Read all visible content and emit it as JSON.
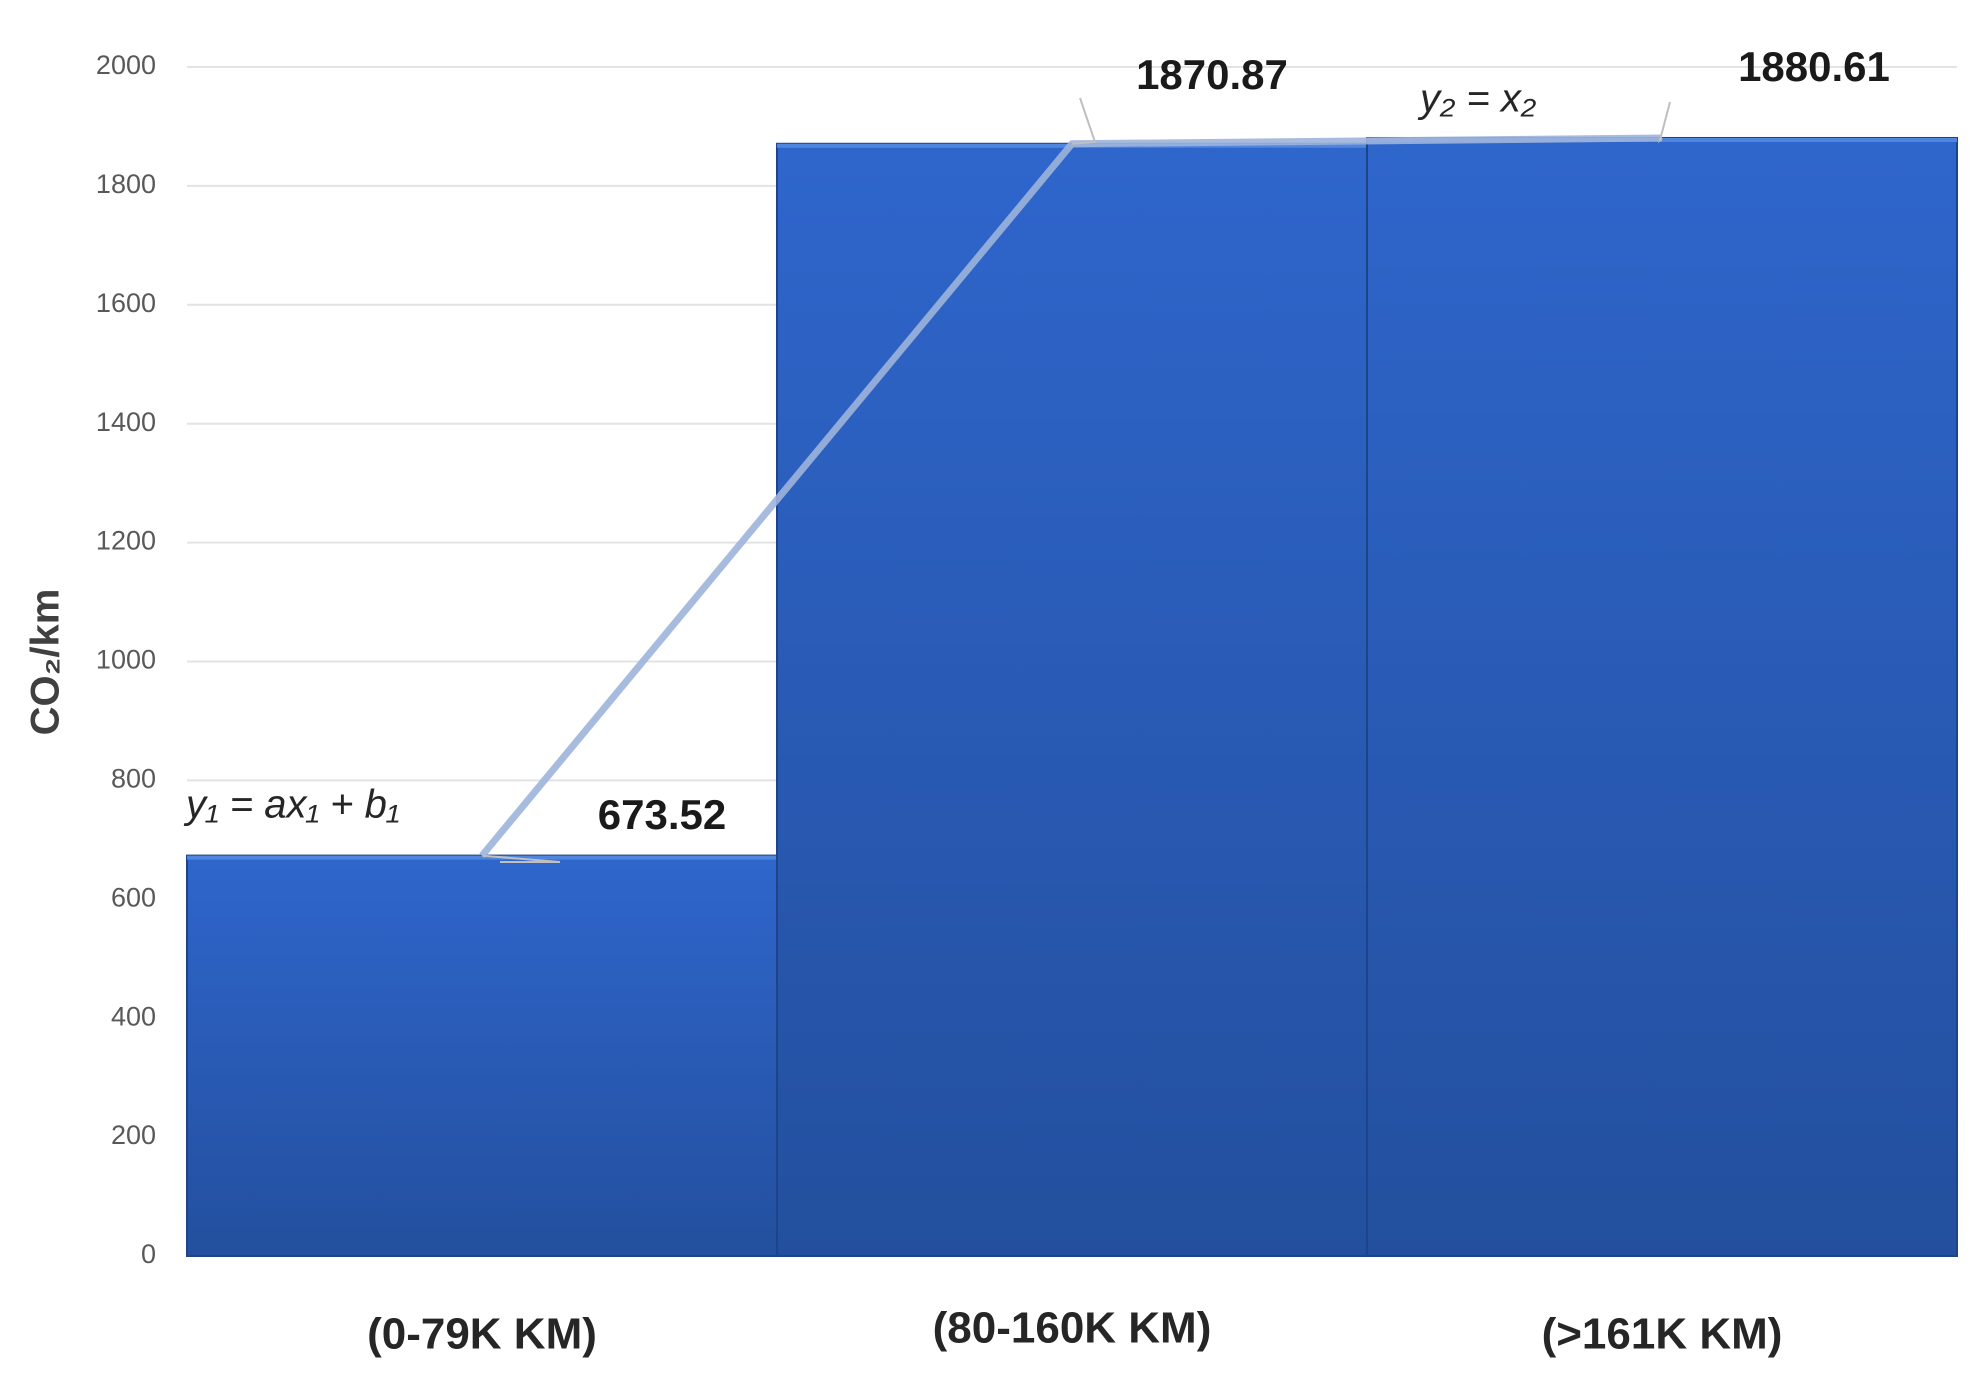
{
  "chart_data": {
    "type": "bar",
    "ylabel": "CO₂/km",
    "categories": [
      "(0-79K KM)",
      "(80-160K KM)",
      "(>161K KM)"
    ],
    "values": [
      673.52,
      1870.87,
      1880.61
    ],
    "color": "#2d62c6",
    "ylim": [
      0,
      2000
    ],
    "yticks": [
      0,
      200,
      400,
      600,
      800,
      1000,
      1200,
      1400,
      1600,
      1800,
      2000
    ],
    "grid": true,
    "annotations": [
      "y₁ = ax₁ + b₁",
      "y₂ = x₂"
    ]
  }
}
